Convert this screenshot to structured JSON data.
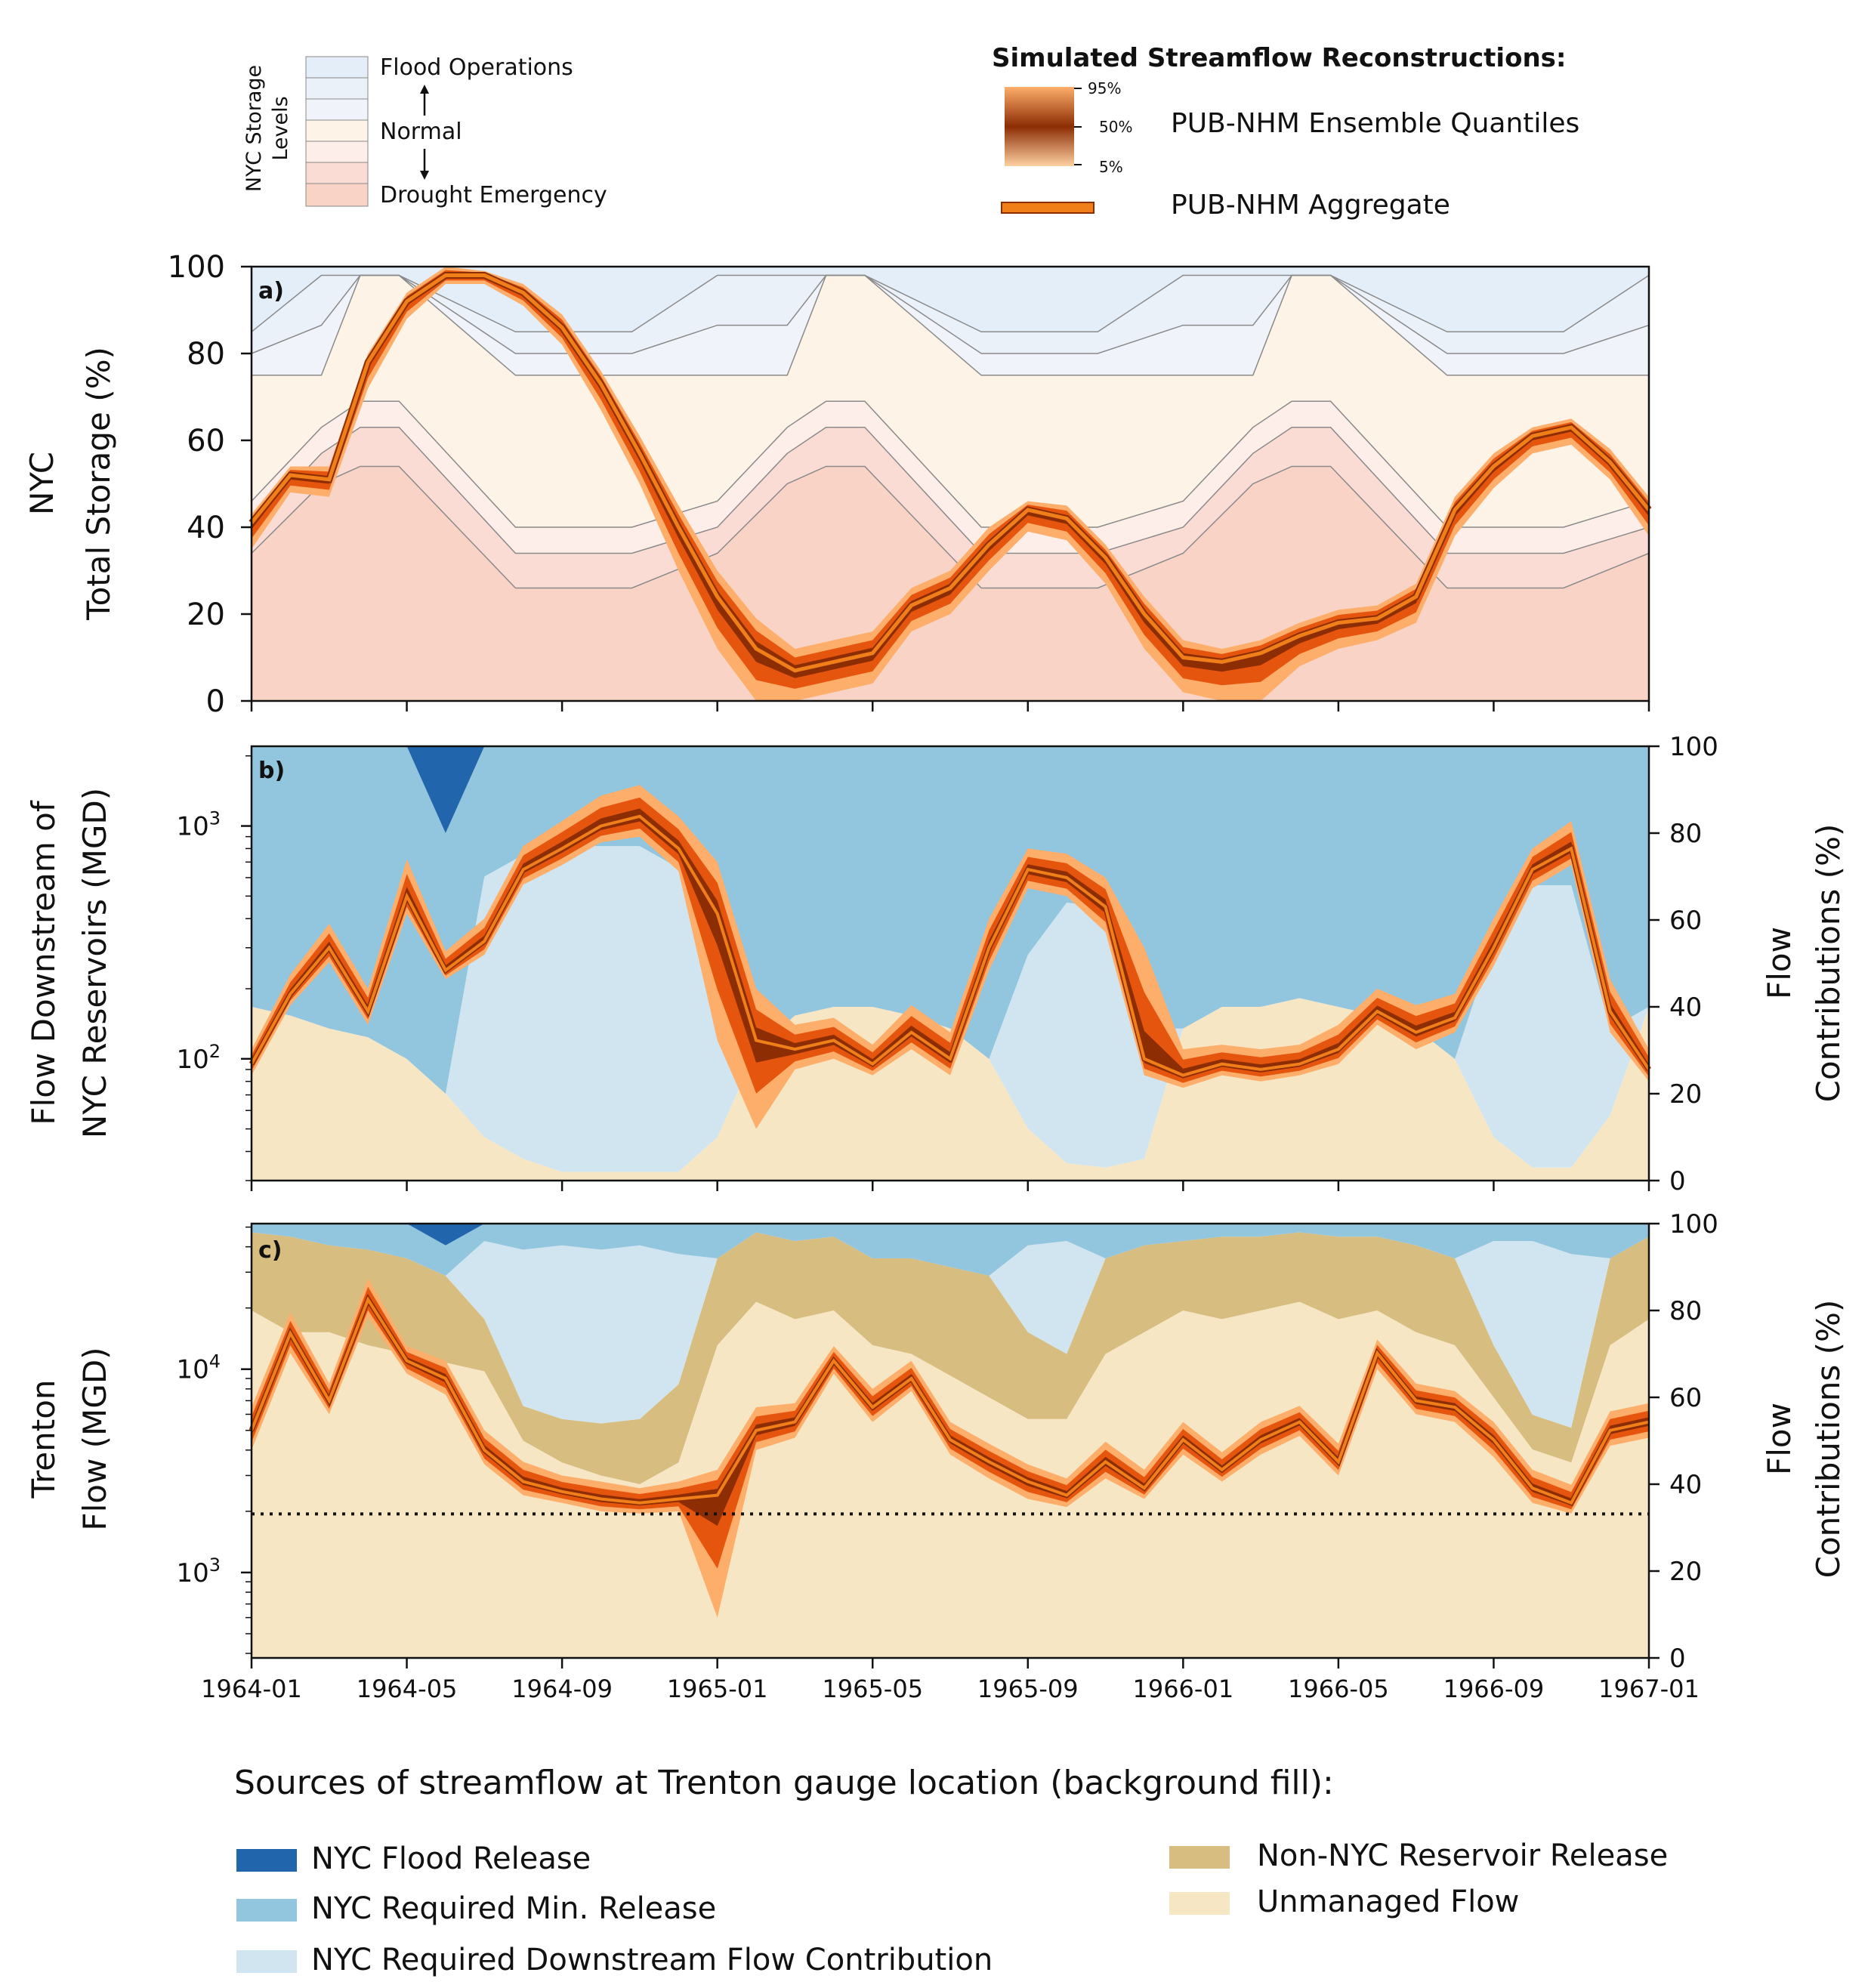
{
  "top_legend": {
    "storage_title_line1": "NYC Storage",
    "storage_title_line2": "Levels",
    "storage_entries": {
      "flood": "Flood Operations",
      "normal": "Normal",
      "drought": "Drought Emergency"
    },
    "recon_title": "Simulated Streamflow Reconstructions:",
    "quantile_ticks": [
      "95%",
      "50%",
      "5%"
    ],
    "quantile_label": "PUB-NHM Ensemble Quantiles",
    "aggregate_label": "PUB-NHM Aggregate"
  },
  "colors": {
    "storage_bands": [
      "#e4eef8",
      "#ebf1f9",
      "#f0f4fa",
      "#fdf3e7",
      "#fdeee9",
      "#fbdcd5",
      "#f9d3c6"
    ],
    "flood_release": "#2166ac",
    "min_release": "#92c5de",
    "downstream_contrib": "#d1e5f0",
    "non_nyc_release": "#d8bd80",
    "unmanaged": "#f6e6c3",
    "quant_light": "#fdae6b",
    "quant_mid": "#e6550d",
    "quant_dark": "#8c2d04",
    "aggregate": "#f07f1a"
  },
  "axes": {
    "x_ticks": [
      "1964-01",
      "1964-05",
      "1964-09",
      "1965-01",
      "1965-05",
      "1965-09",
      "1966-01",
      "1966-05",
      "1966-09",
      "1967-01"
    ],
    "a": {
      "tag": "a)",
      "ylabel_line1": "NYC",
      "ylabel_line2": "Total Storage (%)",
      "yticks": [
        "0",
        "20",
        "40",
        "60",
        "80",
        "100"
      ]
    },
    "b": {
      "tag": "b)",
      "ylabel_line1": "Flow Downstream of",
      "ylabel_line2": "NYC Reservoirs (MGD)",
      "ylabel_right_line1": "Flow",
      "ylabel_right_line2": "Contributions (%)",
      "yticks_right": [
        "0",
        "20",
        "40",
        "60",
        "80",
        "100"
      ]
    },
    "c": {
      "tag": "c)",
      "ylabel_line1": "Trenton",
      "ylabel_line2": "Flow (MGD)",
      "ylabel_right_line1": "Flow",
      "ylabel_right_line2": "Contributions (%)",
      "yticks_right": [
        "0",
        "20",
        "40",
        "60",
        "80",
        "100"
      ]
    }
  },
  "bottom_legend": {
    "title": "Sources of streamflow at Trenton gauge location (background fill):",
    "items": {
      "flood": "NYC Flood Release",
      "min": "NYC Required Min. Release",
      "downstream": "NYC Required Downstream Flow Contribution",
      "non_nyc": "Non-NYC Reservoir Release",
      "unmanaged": "Unmanaged Flow"
    }
  },
  "chart_data": [
    {
      "type": "area",
      "panel": "a",
      "xlim": [
        "1964-01",
        "1967-01"
      ],
      "ylim": [
        0,
        100
      ],
      "ylabel": "NYC Total Storage (%)",
      "x": [
        0,
        1,
        2,
        3,
        4,
        5,
        6,
        7,
        8,
        9,
        10,
        11,
        12,
        13,
        14,
        15,
        16,
        17,
        18,
        19,
        20,
        21,
        22,
        23,
        24,
        25,
        26,
        27,
        28,
        29,
        30,
        31,
        32,
        33,
        34,
        35,
        36
      ],
      "storage_levels": {
        "x": [
          0,
          1.8,
          2.8,
          3.8,
          6.8,
          9.8,
          12.0,
          13.8,
          14.8,
          15.8,
          18.8,
          21.8,
          24.0,
          25.8,
          26.8,
          27.8,
          30.8,
          33.8,
          36.0
        ],
        "flood_upper": [
          85,
          98,
          98,
          98,
          85,
          85,
          98,
          98,
          98,
          98,
          85,
          85,
          98,
          98,
          98,
          98,
          85,
          85,
          98
        ],
        "flood_lower": [
          75,
          75,
          98,
          98,
          75,
          75,
          75,
          75,
          98,
          98,
          75,
          75,
          75,
          75,
          98,
          98,
          75,
          75,
          75
        ],
        "normal_lower": [
          46,
          63,
          69,
          69,
          40,
          40,
          46,
          63,
          69,
          69,
          40,
          40,
          46,
          63,
          69,
          69,
          40,
          40,
          46
        ],
        "watch": [
          40,
          57,
          63,
          63,
          34,
          34,
          40,
          57,
          63,
          63,
          34,
          34,
          40,
          57,
          63,
          63,
          34,
          34,
          40
        ],
        "warning": [
          34,
          50,
          54,
          54,
          26,
          26,
          34,
          50,
          54,
          54,
          26,
          26,
          34,
          50,
          54,
          54,
          26,
          26,
          34
        ]
      },
      "series": [
        {
          "name": "PUB-NHM Aggregate",
          "values": [
            41,
            52,
            51,
            78,
            92,
            98,
            98,
            94,
            86,
            73,
            57,
            40,
            24,
            12,
            7,
            9,
            11,
            22,
            26,
            36,
            44,
            42,
            33,
            20,
            10,
            9,
            11,
            15,
            18,
            19,
            24,
            44,
            54,
            61,
            63,
            55,
            44
          ]
        },
        {
          "name": "5%",
          "values": [
            35,
            48,
            47,
            72,
            88,
            96,
            96,
            91,
            82,
            67,
            50,
            30,
            12,
            0,
            0,
            2,
            4,
            16,
            20,
            30,
            39,
            37,
            27,
            12,
            2,
            0,
            0,
            8,
            12,
            14,
            18,
            38,
            49,
            57,
            59,
            51,
            38
          ]
        },
        {
          "name": "95%",
          "values": [
            43,
            54,
            54,
            80,
            94,
            100,
            99,
            96,
            89,
            76,
            61,
            45,
            30,
            19,
            12,
            14,
            16,
            26,
            30,
            40,
            46,
            45,
            36,
            24,
            14,
            12,
            14,
            18,
            21,
            22,
            27,
            47,
            57,
            63,
            65,
            58,
            47
          ]
        }
      ]
    },
    {
      "type": "area",
      "panel": "b",
      "xlim": [
        "1964-01",
        "1967-01"
      ],
      "ylim": [
        30,
        2200
      ],
      "yscale": "log",
      "ylabel": "Flow Downstream of NYC Reservoirs (MGD)",
      "ylabel_right": "Flow Contributions (%)",
      "x": [
        0,
        1,
        2,
        3,
        4,
        5,
        6,
        7,
        8,
        9,
        10,
        11,
        12,
        13,
        14,
        15,
        16,
        17,
        18,
        19,
        20,
        21,
        22,
        23,
        24,
        25,
        26,
        27,
        28,
        29,
        30,
        31,
        32,
        33,
        34,
        35,
        36
      ],
      "series": [
        {
          "name": "PUB-NHM Aggregate",
          "values": [
            95,
            190,
            300,
            160,
            500,
            240,
            320,
            650,
            800,
            1000,
            1100,
            800,
            420,
            120,
            110,
            120,
            95,
            130,
            100,
            300,
            650,
            600,
            450,
            100,
            85,
            95,
            90,
            95,
            110,
            160,
            130,
            150,
            300,
            650,
            800,
            160,
            90
          ]
        },
        {
          "name": "5%",
          "values": [
            85,
            170,
            260,
            140,
            420,
            220,
            280,
            560,
            680,
            850,
            900,
            640,
            120,
            50,
            90,
            100,
            85,
            110,
            85,
            240,
            540,
            500,
            350,
            85,
            75,
            85,
            80,
            85,
            95,
            140,
            110,
            130,
            250,
            540,
            680,
            130,
            80
          ]
        },
        {
          "name": "95%",
          "values": [
            110,
            230,
            380,
            200,
            720,
            290,
            400,
            820,
            1050,
            1350,
            1500,
            1100,
            700,
            200,
            140,
            150,
            115,
            170,
            130,
            400,
            800,
            760,
            600,
            300,
            110,
            115,
            110,
            115,
            140,
            200,
            170,
            190,
            400,
            800,
            1050,
            220,
            110
          ]
        }
      ],
      "contributions_pct": {
        "unmanaged": [
          40,
          38,
          35,
          33,
          28,
          20,
          10,
          5,
          2,
          2,
          2,
          2,
          10,
          30,
          38,
          40,
          40,
          38,
          35,
          28,
          12,
          4,
          3,
          5,
          35,
          40,
          40,
          42,
          40,
          38,
          35,
          28,
          10,
          3,
          3,
          15,
          40
        ],
        "downstream": [
          0,
          0,
          0,
          0,
          0,
          0,
          60,
          70,
          75,
          75,
          75,
          70,
          30,
          0,
          0,
          0,
          0,
          0,
          0,
          0,
          40,
          60,
          60,
          30,
          0,
          0,
          0,
          0,
          0,
          0,
          0,
          0,
          45,
          65,
          65,
          20,
          0
        ],
        "flood": [
          0,
          0,
          0,
          0,
          0,
          20,
          0,
          0,
          0,
          0,
          0,
          0,
          0,
          0,
          0,
          0,
          0,
          0,
          0,
          0,
          0,
          0,
          0,
          0,
          0,
          0,
          0,
          0,
          0,
          0,
          0,
          0,
          0,
          0,
          0,
          0,
          0
        ]
      }
    },
    {
      "type": "area",
      "panel": "c",
      "xlim": [
        "1964-01",
        "1967-01"
      ],
      "ylim": [
        380,
        52000
      ],
      "yscale": "log",
      "ylabel": "Trenton Flow (MGD)",
      "ylabel_right": "Flow Contributions (%)",
      "threshold": 1940,
      "x": [
        0,
        1,
        2,
        3,
        4,
        5,
        6,
        7,
        8,
        9,
        10,
        11,
        12,
        13,
        14,
        15,
        16,
        17,
        18,
        19,
        20,
        21,
        22,
        23,
        24,
        25,
        26,
        27,
        28,
        29,
        30,
        31,
        32,
        33,
        34,
        35,
        36
      ],
      "series": [
        {
          "name": "PUB-NHM Aggregate",
          "values": [
            5000,
            15000,
            7000,
            22000,
            11000,
            9000,
            4000,
            2800,
            2500,
            2300,
            2200,
            2300,
            2400,
            5000,
            5500,
            11000,
            6500,
            9000,
            4500,
            3500,
            2800,
            2400,
            3500,
            2600,
            4500,
            3200,
            4500,
            5500,
            3500,
            12000,
            7000,
            6500,
            4500,
            2600,
            2200,
            5000,
            5500
          ]
        },
        {
          "name": "5%",
          "values": [
            4000,
            12000,
            6000,
            18000,
            9500,
            7500,
            3400,
            2400,
            2200,
            2000,
            1950,
            2000,
            600,
            4000,
            4600,
            9500,
            5500,
            7800,
            3800,
            2900,
            2300,
            2100,
            2900,
            2300,
            3800,
            2800,
            3800,
            4700,
            3000,
            10000,
            6000,
            5500,
            3700,
            2200,
            1950,
            4200,
            4600
          ]
        },
        {
          "name": "95%",
          "values": [
            6500,
            19000,
            8500,
            28000,
            13000,
            11000,
            5000,
            3500,
            3000,
            2800,
            2600,
            2800,
            3200,
            6500,
            6800,
            13000,
            8000,
            11000,
            5500,
            4300,
            3400,
            2900,
            4400,
            3200,
            5500,
            3900,
            5500,
            6600,
            4300,
            14000,
            8500,
            7800,
            5500,
            3200,
            2700,
            6200,
            6800
          ]
        }
      ],
      "contributions_pct": {
        "unmanaged": [
          80,
          75,
          75,
          72,
          70,
          68,
          66,
          50,
          45,
          42,
          40,
          45,
          72,
          82,
          78,
          80,
          72,
          70,
          65,
          60,
          55,
          55,
          70,
          75,
          80,
          78,
          80,
          82,
          78,
          80,
          75,
          72,
          60,
          48,
          45,
          72,
          78
        ],
        "non_nyc": [
          18,
          22,
          20,
          22,
          22,
          20,
          12,
          8,
          10,
          12,
          15,
          18,
          20,
          16,
          18,
          17,
          20,
          22,
          25,
          28,
          20,
          15,
          22,
          20,
          16,
          19,
          17,
          16,
          19,
          17,
          20,
          20,
          12,
          8,
          8,
          20,
          19
        ],
        "downstream": [
          0,
          0,
          0,
          0,
          0,
          0,
          18,
          36,
          40,
          40,
          40,
          30,
          0,
          0,
          0,
          0,
          0,
          0,
          0,
          0,
          20,
          26,
          0,
          0,
          0,
          0,
          0,
          0,
          0,
          0,
          0,
          0,
          24,
          40,
          40,
          0,
          0
        ],
        "flood": [
          0,
          0,
          0,
          0,
          0,
          5,
          0,
          0,
          0,
          0,
          0,
          0,
          0,
          0,
          0,
          0,
          0,
          0,
          0,
          0,
          0,
          0,
          0,
          0,
          0,
          0,
          0,
          0,
          0,
          0,
          0,
          0,
          0,
          0,
          0,
          0,
          0
        ]
      }
    }
  ]
}
